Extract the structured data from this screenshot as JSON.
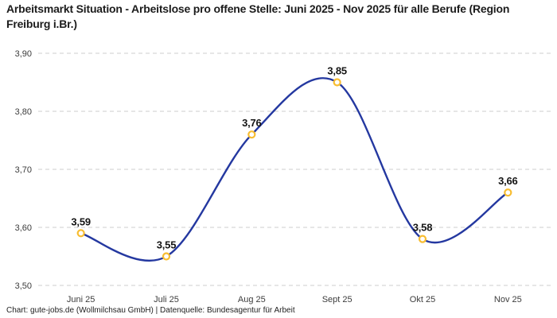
{
  "title": "Arbeitsmarkt Situation - Arbeitslose pro offene Stelle: Juni 2025 - Nov 2025 für alle Berufe (Region Freiburg i.Br.)",
  "footer": "Chart: gute-jobs.de (Wollmilchsau GmbH) | Datenquelle: Bundesagentur für Arbeit",
  "colors": {
    "line": "#2438a0",
    "marker": "#f8bd31",
    "grid": "#cccccc",
    "text": "#3c3c3c",
    "label": "#141414"
  },
  "chart_data": {
    "type": "line",
    "title": "Arbeitsmarkt Situation - Arbeitslose pro offene Stelle: Juni 2025 - Nov 2025 für alle Berufe (Region Freiburg i.Br.)",
    "categories": [
      "Juni 25",
      "Juli 25",
      "Aug 25",
      "Sept 25",
      "Okt 25",
      "Nov 25"
    ],
    "values": [
      3.59,
      3.55,
      3.76,
      3.85,
      3.58,
      3.66
    ],
    "point_labels": [
      "3,59",
      "3,55",
      "3,76",
      "3,85",
      "3,58",
      "3,66"
    ],
    "y_ticks": [
      {
        "value": 3.5,
        "label": "3,50"
      },
      {
        "value": 3.6,
        "label": "3,60"
      },
      {
        "value": 3.7,
        "label": "3,70"
      },
      {
        "value": 3.8,
        "label": "3,80"
      },
      {
        "value": 3.9,
        "label": "3,90"
      }
    ],
    "ylim": [
      3.5,
      3.9
    ],
    "xlabel": "",
    "ylabel": "",
    "grid": "horizontal-dashed",
    "legend": "none",
    "curve": "smooth"
  }
}
